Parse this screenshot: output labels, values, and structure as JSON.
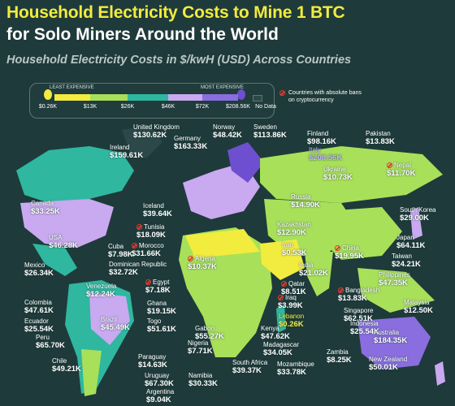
{
  "header": {
    "title_line1": "Household Electricity Costs to Mine 1 BTC",
    "title_line2": "for Solo Miners Around the World",
    "subtitle": "Household Electricity Costs in $/kwH (USD) Across Countries"
  },
  "legend": {
    "least_label": "LEAST EXPENSIVE",
    "most_label": "MOST EXPENSIVE",
    "ticks": [
      "$0.26K",
      "$13K",
      "$26K",
      "$46K",
      "$72K",
      "$208.56K",
      "No Data"
    ],
    "colors": [
      "#f2ec3e",
      "#a8e05a",
      "#2fb7a0",
      "#1d8f84",
      "#c9a9f0",
      "#6d4fcf",
      "#2c4848"
    ],
    "ban_label_line1": "Countries with absolute bans",
    "ban_label_line2": "on cryptocurrency"
  },
  "countries": [
    {
      "name": "United Kingdom",
      "value": "$130.62K"
    },
    {
      "name": "Norway",
      "value": "$48.42K"
    },
    {
      "name": "Sweden",
      "value": "$113.86K"
    },
    {
      "name": "Finland",
      "value": "$98.16K"
    },
    {
      "name": "Pakistan",
      "value": "$13.83K"
    },
    {
      "name": "Ireland",
      "value": "$159.61K"
    },
    {
      "name": "Germany",
      "value": "$163.33K"
    },
    {
      "name": "Italy",
      "value": "$208.56K"
    },
    {
      "name": "Nepal",
      "value": "$11.70K",
      "ban": true
    },
    {
      "name": "Ukraine",
      "value": "$10.73K"
    },
    {
      "name": "Canada",
      "value": "$33.25K"
    },
    {
      "name": "Iceland",
      "value": "$39.64K"
    },
    {
      "name": "Russia",
      "value": "$14.90K"
    },
    {
      "name": "South Korea",
      "value": "$29.00K"
    },
    {
      "name": "Tunisia",
      "value": "$18.09K",
      "ban": true
    },
    {
      "name": "Kazakhstan",
      "value": "$12.90K"
    },
    {
      "name": "USA",
      "value": "$46.28K"
    },
    {
      "name": "Cuba",
      "value": "$7.98K"
    },
    {
      "name": "Morocco",
      "value": "$31.66K",
      "ban": true
    },
    {
      "name": "Japan",
      "value": "$64.11K"
    },
    {
      "name": "China",
      "value": "$19.95K",
      "ban": true
    },
    {
      "name": "Dominican Republic",
      "value": "$32.72K"
    },
    {
      "name": "Iran",
      "value": "$0.53K"
    },
    {
      "name": "Taiwan",
      "value": "$24.21K"
    },
    {
      "name": "Algeria",
      "value": "$10.37K",
      "ban": true
    },
    {
      "name": "Mexico",
      "value": "$26.34K"
    },
    {
      "name": "India",
      "value": "$21.02K"
    },
    {
      "name": "Philippines",
      "value": "$47.35K"
    },
    {
      "name": "Egypt",
      "value": "$7.18K",
      "ban": true
    },
    {
      "name": "Venezuela",
      "value": "$12.24K"
    },
    {
      "name": "Qatar",
      "value": "$8.51K",
      "ban": true
    },
    {
      "name": "Bangladesh",
      "value": "$13.83K",
      "ban": true
    },
    {
      "name": "Colombia",
      "value": "$47.61K"
    },
    {
      "name": "Iraq",
      "value": "$3.99K",
      "ban": true
    },
    {
      "name": "Malaysia",
      "value": "$12.50K"
    },
    {
      "name": "Ghana",
      "value": "$19.15K"
    },
    {
      "name": "Lebanon",
      "value": "$0.26K"
    },
    {
      "name": "Singapore",
      "value": "$62.51K"
    },
    {
      "name": "Ecuador",
      "value": "$25.54K"
    },
    {
      "name": "Brazil",
      "value": "$45.49K"
    },
    {
      "name": "Togo",
      "value": "$51.61K"
    },
    {
      "name": "Indonesia",
      "value": "$25.54K"
    },
    {
      "name": "Gabon",
      "value": "$55.27K"
    },
    {
      "name": "Peru",
      "value": "$65.70K"
    },
    {
      "name": "Kenya",
      "value": "$47.62K"
    },
    {
      "name": "Nigeria",
      "value": "$7.71K"
    },
    {
      "name": "Madagascar",
      "value": "$34.05K"
    },
    {
      "name": "Australia",
      "value": "$184.35K"
    },
    {
      "name": "Paraguay",
      "value": "$14.63K"
    },
    {
      "name": "Zambia",
      "value": "$8.25K"
    },
    {
      "name": "Uruguay",
      "value": "$67.30K"
    },
    {
      "name": "New Zealand",
      "value": "$50.01K"
    },
    {
      "name": "Namibia",
      "value": "$30.33K"
    },
    {
      "name": "South Africa",
      "value": "$39.37K"
    },
    {
      "name": "Mozambique",
      "value": "$33.78K"
    },
    {
      "name": "Chile",
      "value": "$49.21K"
    },
    {
      "name": "Argentina",
      "value": "$9.04K"
    }
  ]
}
